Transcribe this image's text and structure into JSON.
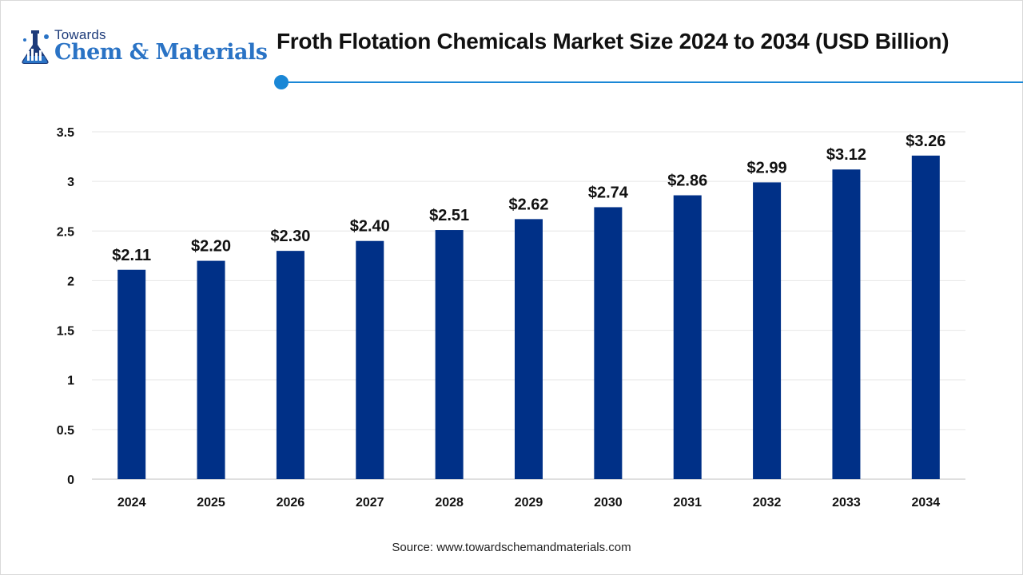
{
  "brand": {
    "line1": "Towards",
    "line2": "Chem & Materials",
    "colors": {
      "navy": "#1d3b7a",
      "blue": "#2a73c5"
    }
  },
  "header": {
    "title": "Froth Flotation Chemicals Market Size 2024 to 2034 (USD Billion)",
    "accent_color": "#1a87d6"
  },
  "chart_data": {
    "type": "bar",
    "title": "Froth Flotation Chemicals Market Size 2024 to 2034 (USD Billion)",
    "categories": [
      "2024",
      "2025",
      "2026",
      "2027",
      "2028",
      "2029",
      "2030",
      "2031",
      "2032",
      "2033",
      "2034"
    ],
    "values": [
      2.11,
      2.2,
      2.3,
      2.4,
      2.51,
      2.62,
      2.74,
      2.86,
      2.99,
      3.12,
      3.26
    ],
    "data_labels": [
      "$2.11",
      "$2.20",
      "$2.30",
      "$2.40",
      "$2.51",
      "$2.62",
      "$2.74",
      "$2.86",
      "$2.99",
      "$3.12",
      "$3.26"
    ],
    "ylim": [
      0,
      3.5
    ],
    "y_ticks": [
      "0",
      "0.5",
      "1",
      "1.5",
      "2",
      "2.5",
      "3",
      "3.5"
    ],
    "xlabel": "",
    "ylabel": "",
    "grid": true,
    "legend": "none",
    "bar_color": "#003087"
  },
  "footer": {
    "source": "Source: www.towardschemandmaterials.com"
  }
}
